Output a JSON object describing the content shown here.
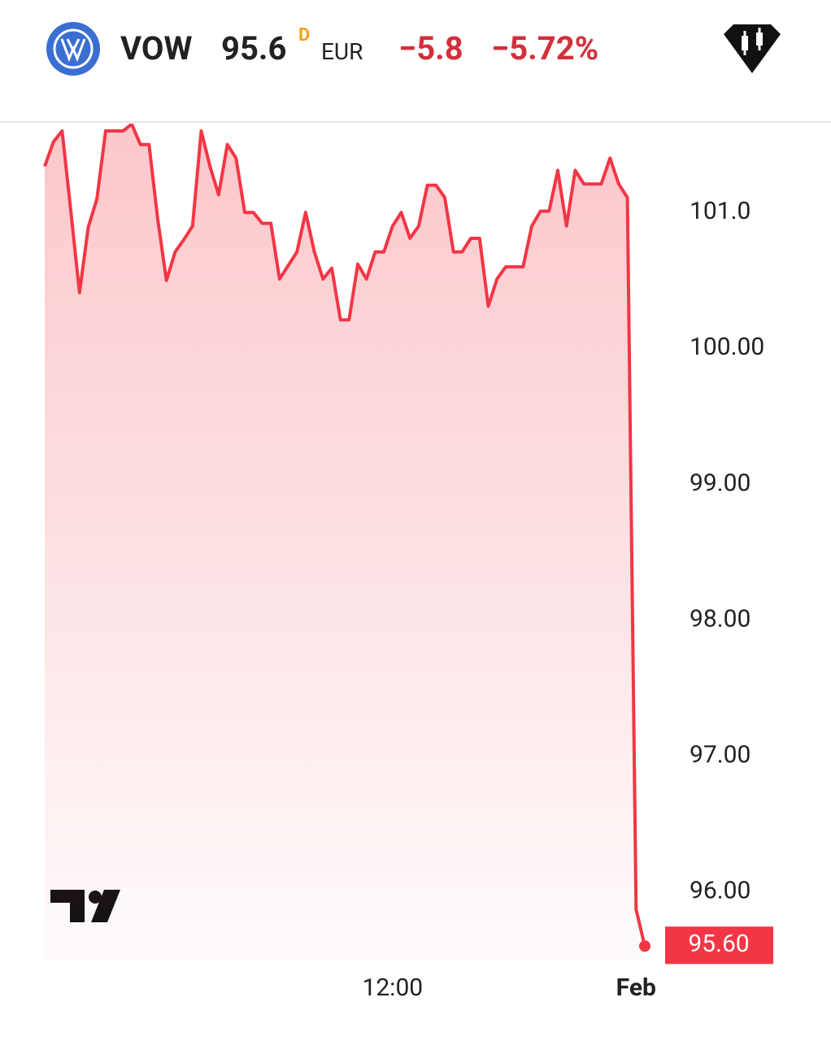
{
  "header": {
    "ticker": "VOW",
    "price": "95.6",
    "flag": "D",
    "currency": "EUR",
    "change": "−5.8",
    "change_percent": "−5.72%"
  },
  "chart_data": {
    "type": "area",
    "categories": [
      null,
      null,
      null,
      null,
      null,
      null,
      null,
      null,
      null,
      null,
      null,
      null,
      null,
      null,
      null,
      null,
      null,
      null,
      null,
      null,
      null,
      null,
      null,
      null,
      null,
      null,
      null,
      null,
      null,
      null,
      null,
      null,
      null,
      null,
      null,
      null,
      null,
      null,
      null,
      null,
      "12:00",
      null,
      null,
      null,
      null,
      null,
      null,
      null,
      null,
      null,
      null,
      null,
      null,
      null,
      null,
      null,
      null,
      null,
      null,
      null,
      null,
      null,
      null,
      null,
      null,
      null,
      null,
      null,
      "Feb",
      null
    ],
    "series": [
      {
        "color": "#f23645",
        "values": [
          101.34,
          101.52,
          101.6,
          101.01,
          100.41,
          100.89,
          101.1,
          101.6,
          101.6,
          101.6,
          101.65,
          101.5,
          101.5,
          100.95,
          100.5,
          100.71,
          100.8,
          100.9,
          101.6,
          101.34,
          101.13,
          101.5,
          101.4,
          101.0,
          101.0,
          100.92,
          100.92,
          100.51,
          100.61,
          100.71,
          101.0,
          100.71,
          100.51,
          100.59,
          100.21,
          100.21,
          100.62,
          100.51,
          100.71,
          100.71,
          100.9,
          101.0,
          100.81,
          100.9,
          101.2,
          101.2,
          101.11,
          100.71,
          100.71,
          100.81,
          100.81,
          100.31,
          100.51,
          100.6,
          100.6,
          100.6,
          100.9,
          101.01,
          101.01,
          101.31,
          100.9,
          101.31,
          101.21,
          101.21,
          101.21,
          101.4,
          101.21,
          101.11,
          95.87,
          95.6
        ],
        "value_labels": [
          null,
          null,
          null,
          null,
          null,
          null,
          null,
          null,
          null,
          null,
          null,
          null,
          null,
          null,
          null,
          null,
          null,
          null,
          null,
          null,
          null,
          null,
          null,
          null,
          null,
          null,
          null,
          null,
          null,
          null,
          null,
          null,
          null,
          null,
          null,
          null,
          null,
          null,
          null,
          null,
          null,
          null,
          null,
          null,
          null,
          null,
          null,
          null,
          null,
          null,
          null,
          null,
          null,
          null,
          null,
          null,
          null,
          null,
          null,
          null,
          null,
          null,
          null,
          null,
          null,
          null,
          null,
          null,
          null,
          "95.60"
        ]
      }
    ],
    "ylim": [
      95.5,
      101.66
    ],
    "yticks": [
      {
        "value": 96,
        "label": "96.00"
      },
      {
        "value": 97,
        "label": "97.00"
      },
      {
        "value": 98,
        "label": "98.00"
      },
      {
        "value": 99,
        "label": "99.00"
      },
      {
        "value": 100,
        "label": "100.00"
      },
      {
        "value": 101,
        "label": "101.0"
      }
    ]
  }
}
